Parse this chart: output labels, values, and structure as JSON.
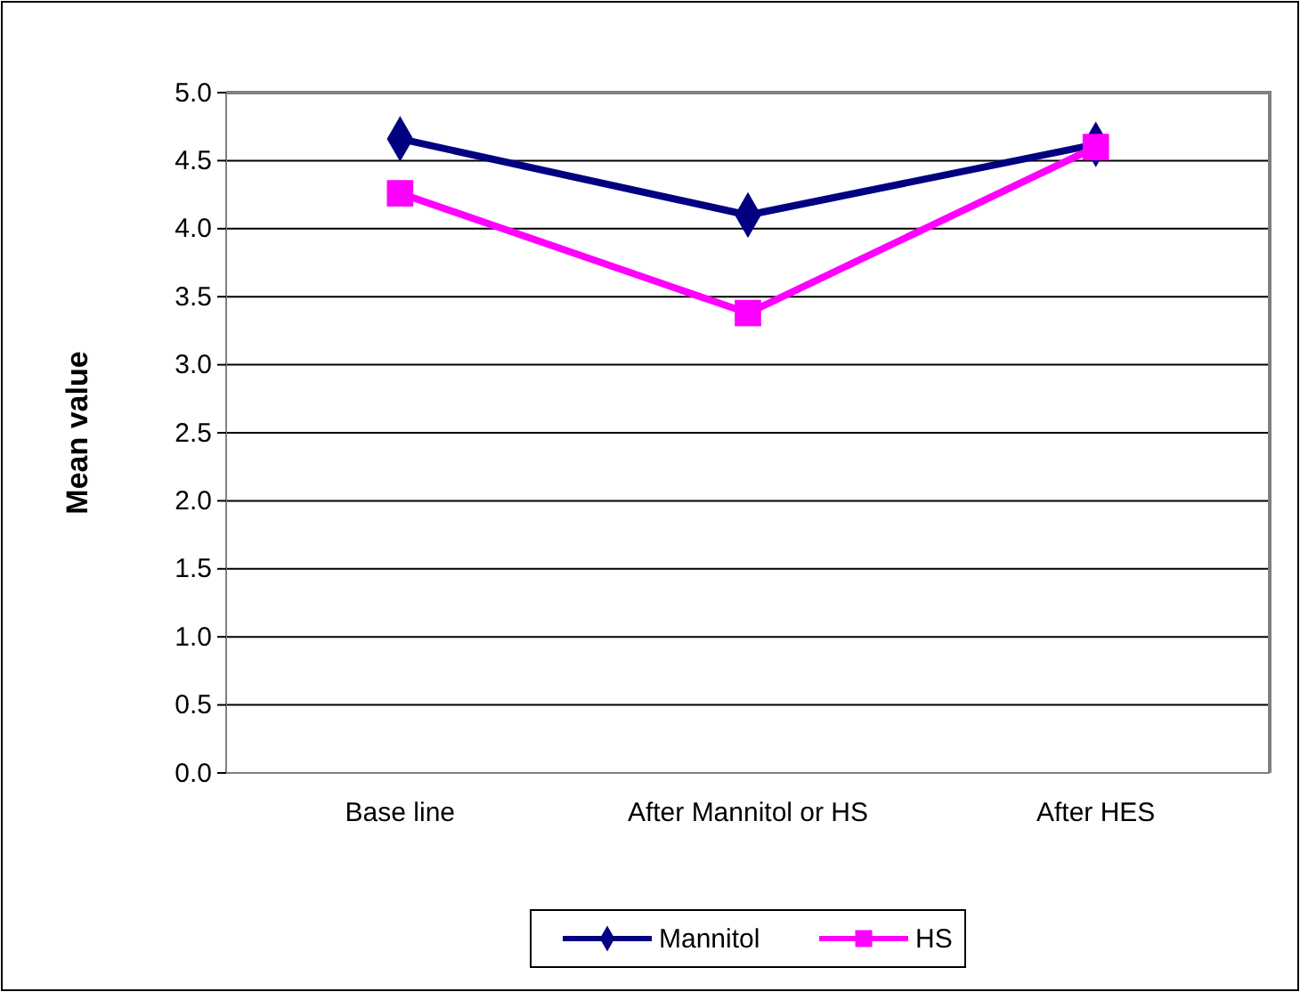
{
  "chart_data": {
    "type": "line",
    "ylabel": "Mean value",
    "categories": [
      "Base line",
      "After Mannitol or HS",
      "After HES"
    ],
    "series": [
      {
        "name": "Mannitol",
        "color": "#000080",
        "marker": "diamond",
        "values": [
          4.66,
          4.1,
          4.62
        ]
      },
      {
        "name": "HS",
        "color": "#ff00ff",
        "marker": "square",
        "values": [
          4.26,
          3.38,
          4.6
        ]
      }
    ],
    "ylim": [
      0,
      5
    ],
    "yticks": [
      {
        "value": 0,
        "label": "0.0"
      },
      {
        "value": 0.5,
        "label": "0.5"
      },
      {
        "value": 1,
        "label": "1.0"
      },
      {
        "value": 1.5,
        "label": "1.5"
      },
      {
        "value": 2,
        "label": "2.0"
      },
      {
        "value": 2.5,
        "label": "2.5"
      },
      {
        "value": 3,
        "label": "3.0"
      },
      {
        "value": 3.5,
        "label": "3.5"
      },
      {
        "value": 4,
        "label": "4.0"
      },
      {
        "value": 4.5,
        "label": "4.5"
      },
      {
        "value": 5,
        "label": "5.0"
      }
    ],
    "grid": "y",
    "legend": "bottom"
  }
}
